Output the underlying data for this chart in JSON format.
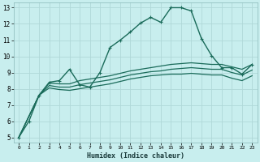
{
  "xlabel": "Humidex (Indice chaleur)",
  "background_color": "#c8eeee",
  "grid_color": "#b0d8d8",
  "line_color": "#1a6b5a",
  "xlim": [
    -0.5,
    23.5
  ],
  "ylim": [
    4.7,
    13.3
  ],
  "xtick_labels": [
    "0",
    "1",
    "2",
    "3",
    "4",
    "5",
    "6",
    "7",
    "8",
    "9",
    "10",
    "11",
    "12",
    "13",
    "14",
    "15",
    "16",
    "17",
    "18",
    "19",
    "20",
    "21",
    "22",
    "23"
  ],
  "ytick_labels": [
    "5",
    "6",
    "7",
    "8",
    "9",
    "10",
    "11",
    "12",
    "13"
  ],
  "main_x": [
    0,
    1,
    2,
    3,
    4,
    5,
    6,
    7,
    8,
    9,
    10,
    11,
    12,
    13,
    14,
    15,
    16,
    17,
    18,
    19,
    20,
    21,
    22,
    23
  ],
  "main_y": [
    5.0,
    6.0,
    7.6,
    8.4,
    8.5,
    9.2,
    8.25,
    8.1,
    9.0,
    10.55,
    11.0,
    11.5,
    12.05,
    12.4,
    12.1,
    13.0,
    13.0,
    12.8,
    11.1,
    10.05,
    9.3,
    9.3,
    8.9,
    9.5
  ],
  "line2_x": [
    0,
    2,
    3,
    4,
    5,
    6,
    7,
    8,
    9,
    10,
    11,
    12,
    13,
    14,
    15,
    16,
    17,
    18,
    19,
    20,
    21,
    22,
    23
  ],
  "line2_y": [
    5.0,
    7.6,
    8.35,
    8.3,
    8.3,
    8.5,
    8.6,
    8.7,
    8.8,
    8.95,
    9.1,
    9.2,
    9.3,
    9.4,
    9.5,
    9.55,
    9.6,
    9.55,
    9.5,
    9.5,
    9.35,
    9.2,
    9.5
  ],
  "line3_x": [
    0,
    2,
    3,
    4,
    5,
    6,
    7,
    8,
    9,
    10,
    11,
    12,
    13,
    14,
    15,
    16,
    17,
    18,
    19,
    20,
    21,
    22,
    23
  ],
  "line3_y": [
    5.0,
    7.6,
    8.2,
    8.1,
    8.1,
    8.25,
    8.35,
    8.45,
    8.55,
    8.7,
    8.85,
    8.95,
    9.05,
    9.1,
    9.2,
    9.25,
    9.3,
    9.25,
    9.2,
    9.2,
    9.0,
    8.85,
    9.15
  ],
  "line4_x": [
    0,
    2,
    3,
    4,
    5,
    6,
    7,
    8,
    9,
    10,
    11,
    12,
    13,
    14,
    15,
    16,
    17,
    18,
    19,
    20,
    21,
    22,
    23
  ],
  "line4_y": [
    5.0,
    7.6,
    8.05,
    7.95,
    7.9,
    8.0,
    8.1,
    8.2,
    8.3,
    8.45,
    8.6,
    8.7,
    8.8,
    8.85,
    8.9,
    8.9,
    8.95,
    8.9,
    8.85,
    8.85,
    8.65,
    8.5,
    8.8
  ]
}
